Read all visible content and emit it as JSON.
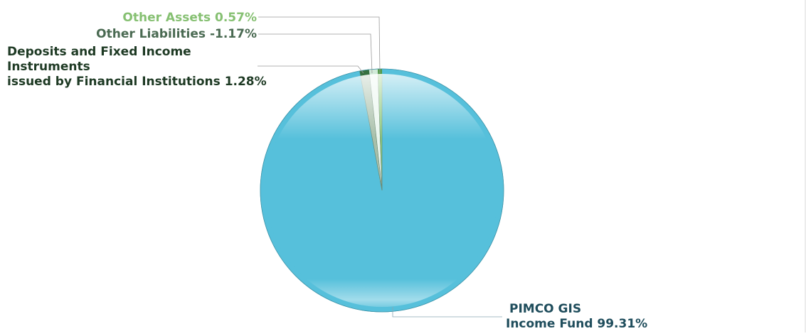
{
  "chart_data": {
    "type": "pie",
    "slices": [
      {
        "label_lines": [
          "PIMCO GIS",
          "Income Fund 99.31%"
        ],
        "value": 99.31,
        "color": "#56c0db",
        "label_color": "#1f4d5c"
      },
      {
        "label_lines": [
          "Deposits and Fixed Income",
          "Instruments",
          "issued by Financial Institutions 1.28%"
        ],
        "value": 1.28,
        "color": "#a7bfa9",
        "label_color": "#1e3a24"
      },
      {
        "label_lines": [
          "Other Liabilities -1.17%"
        ],
        "value": -1.17,
        "color": "#e9f6ee",
        "label_color": "#4a6a52"
      },
      {
        "label_lines": [
          "Other Assets 0.57%"
        ],
        "value": 0.57,
        "color": "#8cc97a",
        "label_color": "#86c072"
      }
    ]
  }
}
